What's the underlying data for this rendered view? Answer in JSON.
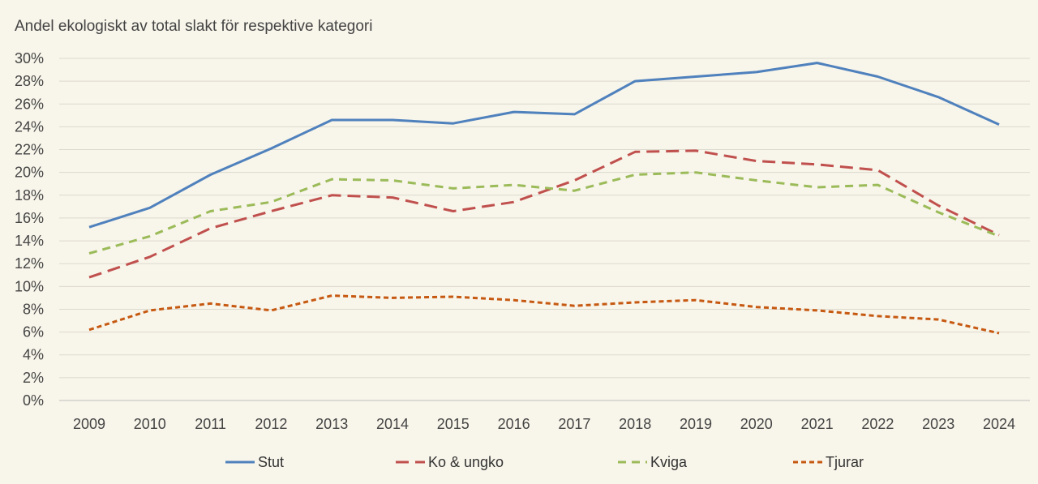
{
  "chart_data": {
    "type": "line",
    "title": "",
    "xlabel": "",
    "ylabel": "Andel ekologiskt av total slakt för respektive kategori",
    "categories": [
      "2009",
      "2010",
      "2011",
      "2012",
      "2013",
      "2014",
      "2015",
      "2016",
      "2017",
      "2018",
      "2019",
      "2020",
      "2021",
      "2022",
      "2023",
      "2024"
    ],
    "ylim": [
      0,
      30
    ],
    "yticks": [
      "0%",
      "2%",
      "4%",
      "6%",
      "8%",
      "10%",
      "12%",
      "14%",
      "16%",
      "18%",
      "20%",
      "22%",
      "24%",
      "26%",
      "28%",
      "30%"
    ],
    "grid": true,
    "legend_position": "bottom",
    "series": [
      {
        "name": "Stut",
        "color": "#4f81bd",
        "dash": "solid",
        "values": [
          15.2,
          16.9,
          19.8,
          22.1,
          24.6,
          24.6,
          24.3,
          25.3,
          25.1,
          28.0,
          28.4,
          28.8,
          29.6,
          28.4,
          26.6,
          24.2
        ]
      },
      {
        "name": "Ko & ungko",
        "color": "#c0504d",
        "dash": "long",
        "values": [
          10.8,
          12.6,
          15.1,
          16.6,
          18.0,
          17.8,
          16.6,
          17.4,
          19.3,
          21.8,
          21.9,
          21.0,
          20.7,
          20.2,
          17.1,
          14.5
        ]
      },
      {
        "name": "Kviga",
        "color": "#9bbb59",
        "dash": "medium",
        "values": [
          12.9,
          14.4,
          16.6,
          17.4,
          19.4,
          19.3,
          18.6,
          18.9,
          18.4,
          19.8,
          20.0,
          19.3,
          18.7,
          18.9,
          16.5,
          14.4
        ]
      },
      {
        "name": "Tjurar",
        "color": "#c65911",
        "dash": "short",
        "values": [
          6.2,
          7.9,
          8.5,
          7.9,
          9.2,
          9.0,
          9.1,
          8.8,
          8.3,
          8.6,
          8.8,
          8.2,
          7.9,
          7.4,
          7.1,
          5.9
        ]
      }
    ]
  }
}
